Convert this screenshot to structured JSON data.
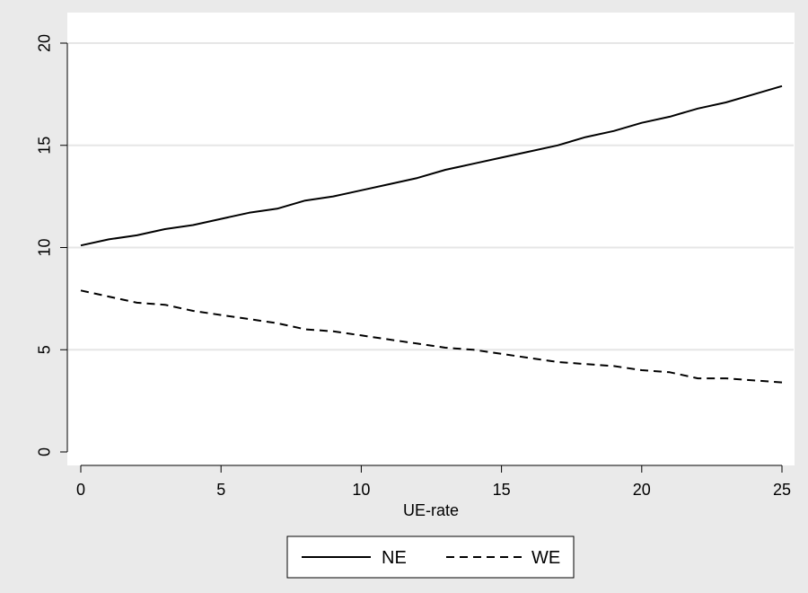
{
  "chart_data": {
    "type": "line",
    "title": "",
    "xlabel": "UE-rate",
    "ylabel": "",
    "xlim": [
      0,
      25
    ],
    "ylim": [
      0,
      20
    ],
    "xticks": [
      0,
      5,
      10,
      15,
      20,
      25
    ],
    "yticks": [
      0,
      5,
      10,
      15,
      20
    ],
    "grid": "horizontal",
    "legend_position": "bottom",
    "x": [
      0,
      1,
      2,
      3,
      4,
      5,
      6,
      7,
      8,
      9,
      10,
      11,
      12,
      13,
      14,
      15,
      16,
      17,
      18,
      19,
      20,
      21,
      22,
      23,
      24,
      25
    ],
    "series": [
      {
        "name": "NE",
        "style": "solid",
        "values": [
          10.1,
          10.4,
          10.6,
          10.9,
          11.1,
          11.4,
          11.7,
          11.9,
          12.3,
          12.5,
          12.8,
          13.1,
          13.4,
          13.8,
          14.1,
          14.4,
          14.7,
          15.0,
          15.4,
          15.7,
          16.1,
          16.4,
          16.8,
          17.1,
          17.5,
          17.9
        ]
      },
      {
        "name": "WE",
        "style": "dashed",
        "values": [
          7.9,
          7.6,
          7.3,
          7.2,
          6.9,
          6.7,
          6.5,
          6.3,
          6.0,
          5.9,
          5.7,
          5.5,
          5.3,
          5.1,
          5.0,
          4.8,
          4.6,
          4.4,
          4.3,
          4.2,
          4.0,
          3.9,
          3.6,
          3.6,
          3.5,
          3.4
        ]
      }
    ],
    "colors": {
      "background": "#eaeaea",
      "plot_area": "#ffffff",
      "grid": "#e6e6e6",
      "line": "#000000"
    }
  }
}
